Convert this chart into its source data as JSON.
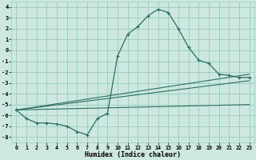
{
  "xlabel": "Humidex (Indice chaleur)",
  "bg_color": "#cce8e0",
  "grid_color": "#99ccbb",
  "line_color": "#2d6e63",
  "xlim": [
    -0.5,
    23.5
  ],
  "ylim": [
    -8.5,
    4.5
  ],
  "xticks": [
    0,
    1,
    2,
    3,
    4,
    5,
    6,
    7,
    8,
    9,
    10,
    11,
    12,
    13,
    14,
    15,
    16,
    17,
    18,
    19,
    20,
    21,
    22,
    23
  ],
  "yticks": [
    -8,
    -7,
    -6,
    -5,
    -4,
    -3,
    -2,
    -1,
    0,
    1,
    2,
    3,
    4
  ],
  "main_line_x": [
    0,
    1,
    2,
    3,
    4,
    5,
    6,
    7,
    8,
    9,
    10,
    11,
    12,
    13,
    14,
    15,
    16,
    17,
    18,
    19,
    20,
    21,
    22,
    23
  ],
  "main_line_y": [
    -5.5,
    -6.3,
    -6.7,
    -6.7,
    -6.8,
    -7.0,
    -7.5,
    -7.8,
    -6.3,
    -5.8,
    -0.5,
    1.5,
    2.2,
    3.2,
    3.8,
    3.5,
    2.0,
    0.3,
    -0.9,
    -1.2,
    -2.2,
    -2.3,
    -2.5,
    -2.5
  ],
  "line2_x": [
    0,
    23
  ],
  "line2_y": [
    -5.5,
    -2.2
  ],
  "line3_x": [
    0,
    23
  ],
  "line3_y": [
    -5.5,
    -2.8
  ],
  "line4_x": [
    0,
    23
  ],
  "line4_y": [
    -5.5,
    -5.0
  ]
}
